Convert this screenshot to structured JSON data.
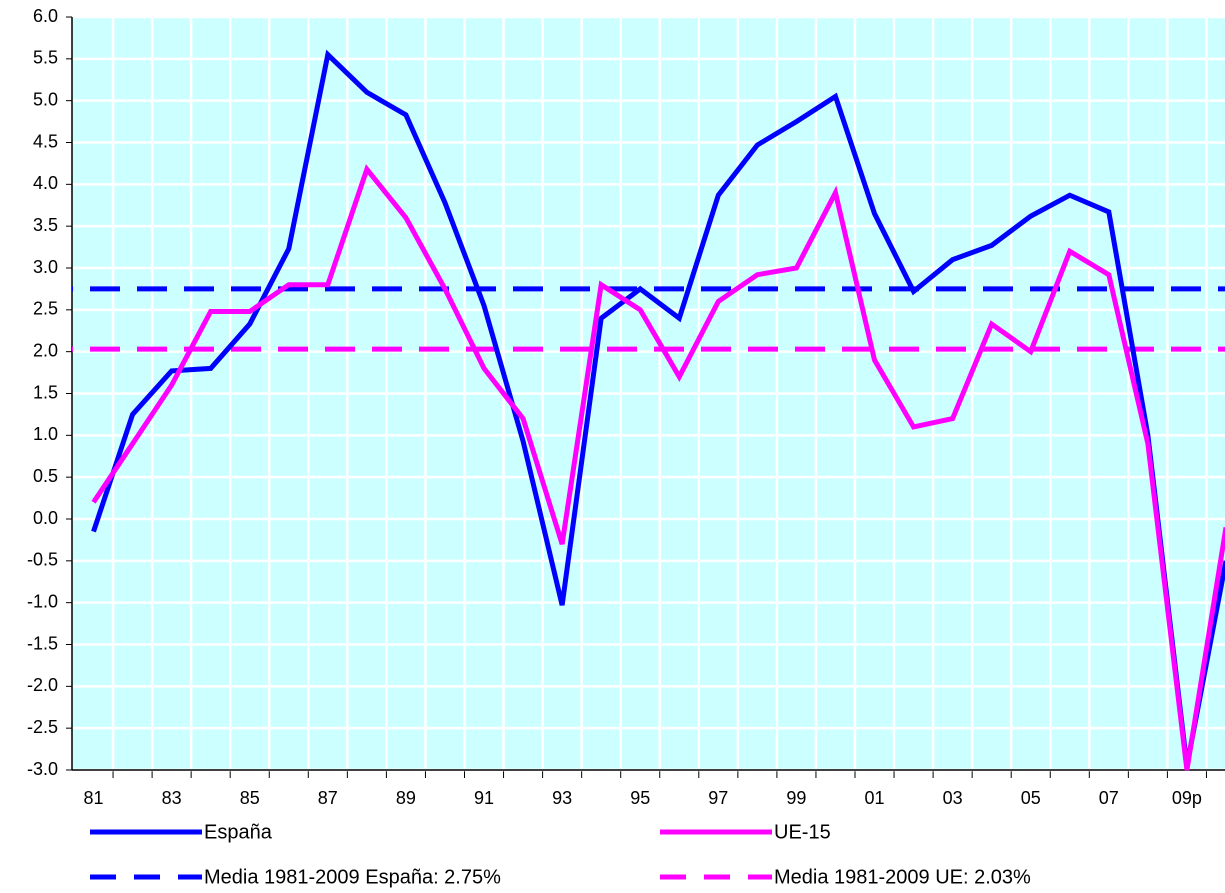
{
  "chart_data": {
    "type": "line",
    "categories": [
      "81",
      null,
      "83",
      null,
      "85",
      null,
      "87",
      null,
      "89",
      null,
      "91",
      null,
      "93",
      null,
      "95",
      null,
      "97",
      null,
      "99",
      null,
      "01",
      null,
      "03",
      null,
      "05",
      null,
      "07",
      null,
      "09p",
      null
    ],
    "series": [
      {
        "name": "España",
        "color": "#0000ff",
        "values": [
          -0.15,
          1.25,
          1.77,
          1.8,
          2.33,
          3.23,
          5.55,
          5.1,
          4.83,
          3.78,
          2.55,
          0.93,
          -1.03,
          2.4,
          2.75,
          2.4,
          3.87,
          4.47,
          4.75,
          5.05,
          3.65,
          2.72,
          3.1,
          3.27,
          3.62,
          3.87,
          3.67,
          1.0,
          -2.95,
          -0.5
        ]
      },
      {
        "name": "UE-15",
        "color": "#ff00ff",
        "values": [
          0.2,
          0.9,
          1.6,
          2.48,
          2.48,
          2.8,
          2.8,
          4.18,
          3.6,
          2.75,
          1.8,
          1.2,
          -0.3,
          2.8,
          2.5,
          1.7,
          2.6,
          2.92,
          3.0,
          3.9,
          1.9,
          1.1,
          1.2,
          2.33,
          2.0,
          3.2,
          2.92,
          0.9,
          -3.0,
          -0.1
        ]
      }
    ],
    "reference_lines": [
      {
        "name": "Media 1981-2009 España: 2.75%",
        "value": 2.75,
        "color": "#0000ff"
      },
      {
        "name": "Media 1981-2009 UE: 2.03%",
        "value": 2.03,
        "color": "#ff00ff"
      }
    ],
    "ylim": [
      -3.0,
      6.0
    ],
    "yticks": [
      {
        "value": -3,
        "label": "-3.0"
      },
      -2.5,
      {
        "value": -2,
        "label": "-2.0"
      },
      -1.5,
      {
        "value": -1,
        "label": "-1.0"
      },
      -0.5,
      {
        "value": 0,
        "label": "0.0"
      },
      0.5,
      {
        "value": 1,
        "label": "1.0"
      },
      1.5,
      {
        "value": 2,
        "label": "2.0"
      },
      2.5,
      {
        "value": 3,
        "label": "3.0"
      },
      3.5,
      {
        "value": 4,
        "label": "4.0"
      },
      4.5,
      {
        "value": 5,
        "label": "5.0"
      },
      5.5,
      {
        "value": 6,
        "label": "6.0"
      }
    ],
    "grid": true,
    "background": "#ccffff"
  }
}
